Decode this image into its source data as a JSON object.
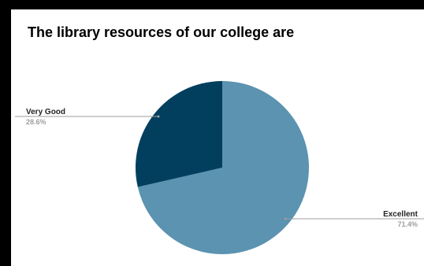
{
  "chart_data": {
    "type": "pie",
    "title": "The library resources of our college are",
    "slices": [
      {
        "label": "Excellent",
        "percent_label": "71.4%",
        "value": 71.4,
        "color": "#5b93b0"
      },
      {
        "label": "Very Good",
        "percent_label": "28.6%",
        "value": 28.6,
        "color": "#023f5f"
      }
    ],
    "label_line_color": "#9e9e9e"
  }
}
